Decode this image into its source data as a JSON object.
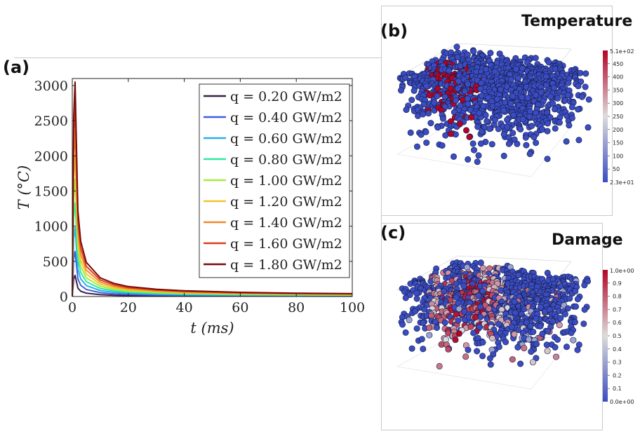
{
  "panels": {
    "a": {
      "label": "(a)"
    },
    "b": {
      "label": "(b)",
      "title": "Temperature"
    },
    "c": {
      "label": "(c)",
      "title": "Damage"
    }
  },
  "chart_data": [
    {
      "type": "line",
      "panel": "(a)",
      "xlabel": "t (ms)",
      "ylabel": "T (°C)",
      "xlim": [
        0,
        100
      ],
      "ylim": [
        0,
        3100
      ],
      "xticks": [
        0,
        20,
        40,
        60,
        80,
        100
      ],
      "yticks": [
        0,
        500,
        1000,
        1500,
        2000,
        2500,
        3000
      ],
      "grid": false,
      "legend_position": "top-right",
      "x": [
        0,
        0.5,
        1,
        2,
        3,
        5,
        10,
        15,
        20,
        30,
        40,
        60,
        80,
        100
      ],
      "series": [
        {
          "name": "q = 0.20 GW/m2",
          "color": "#3b1f4a",
          "values": [
            0,
            250,
            300,
            120,
            75,
            48,
            26,
            18,
            14,
            10,
            8,
            6,
            5,
            4
          ]
        },
        {
          "name": "q = 0.40 GW/m2",
          "color": "#3f5fe0",
          "values": [
            0,
            530,
            640,
            250,
            160,
            100,
            55,
            38,
            30,
            21,
            17,
            12,
            10,
            8
          ]
        },
        {
          "name": "q = 0.60 GW/m2",
          "color": "#2ab0e8",
          "values": [
            0,
            820,
            980,
            390,
            250,
            155,
            85,
            60,
            46,
            33,
            26,
            19,
            15,
            13
          ]
        },
        {
          "name": "q = 0.80 GW/m2",
          "color": "#30e8a0",
          "values": [
            0,
            1110,
            1330,
            530,
            340,
            210,
            115,
            80,
            62,
            45,
            35,
            26,
            21,
            18
          ]
        },
        {
          "name": "q = 1.00 GW/m2",
          "color": "#a2ee3c",
          "values": [
            0,
            1400,
            1670,
            670,
            430,
            265,
            145,
            101,
            78,
            57,
            45,
            33,
            27,
            23
          ]
        },
        {
          "name": "q = 1.20 GW/m2",
          "color": "#f2c62a",
          "values": [
            0,
            1690,
            2010,
            800,
            515,
            320,
            175,
            122,
            94,
            69,
            54,
            40,
            32,
            27
          ]
        },
        {
          "name": "q = 1.40 GW/m2",
          "color": "#f08a2c",
          "values": [
            0,
            1980,
            2350,
            940,
            605,
            375,
            205,
            143,
            110,
            80,
            63,
            46,
            37,
            32
          ]
        },
        {
          "name": "q = 1.60 GW/m2",
          "color": "#d9401c",
          "values": [
            0,
            2270,
            2700,
            1080,
            695,
            430,
            235,
            164,
            126,
            92,
            73,
            53,
            43,
            37
          ]
        },
        {
          "name": "q = 1.80 GW/m2",
          "color": "#7a0a0a",
          "values": [
            0,
            2560,
            3050,
            1220,
            785,
            485,
            265,
            185,
            142,
            104,
            82,
            60,
            48,
            41
          ]
        }
      ]
    },
    {
      "type": "heatmap",
      "panel": "(b)",
      "title": "Temperature",
      "colorbar": {
        "min_label": "2.3e+01",
        "max_label": "5.1e+02",
        "ticks": [
          "450",
          "400",
          "350",
          "300",
          "250",
          "200",
          "150",
          "100",
          "50"
        ],
        "range": [
          23,
          510
        ]
      }
    },
    {
      "type": "heatmap",
      "panel": "(c)",
      "title": "Damage",
      "colorbar": {
        "min_label": "0.0e+00",
        "max_label": "1.0e+00",
        "ticks": [
          "0.9",
          "0.8",
          "0.7",
          "0.6",
          "0.5",
          "0.4",
          "0.3",
          "0.2",
          "0.1"
        ],
        "range": [
          0,
          1
        ]
      }
    }
  ],
  "colors": {
    "cool": "#3b4cc0",
    "mid": "#dddcdc",
    "warm": "#b40426",
    "particle": "#2a3d9c"
  }
}
